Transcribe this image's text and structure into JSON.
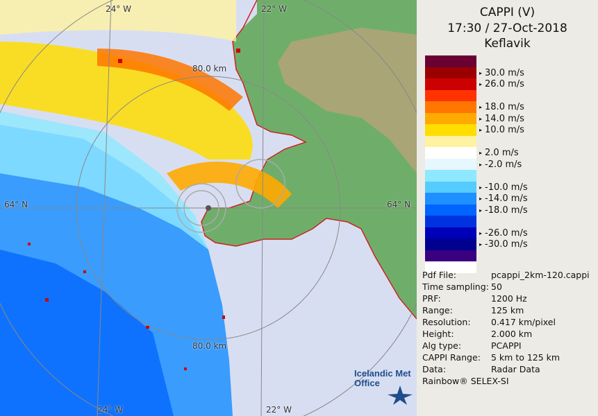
{
  "header": {
    "title": "CAPPI (V)",
    "datetime": "17:30 / 27-Oct-2018",
    "station": "Keflavik"
  },
  "map": {
    "grid_labels": {
      "lon_24w": "24° W",
      "lon_22w_top": "22° W",
      "lon_22w_bottom": "22° W",
      "lon_24w_bottom": "24° W",
      "lat_64n_left": "64° N",
      "lat_64n_right": "64° N",
      "range_80_top": "80.0 km",
      "range_80_bottom": "80.0 km"
    },
    "colors": {
      "sea": "#d8def2",
      "land": "#6fae6a",
      "highland": "#b8a27a",
      "coastline": "#cc2222",
      "grid": "#888888"
    }
  },
  "legend": {
    "colors": [
      "#6b0033",
      "#9a0000",
      "#cc0000",
      "#ff3300",
      "#ff7700",
      "#ffaa00",
      "#ffdd00",
      "#fff2a0",
      "#ffffff",
      "#e6f7ff",
      "#8ee8ff",
      "#55ccff",
      "#1e90ff",
      "#0064ff",
      "#0033e0",
      "#0000b8",
      "#000090",
      "#3a0080",
      "#ffffff"
    ],
    "labels": [
      {
        "text": "30.0 m/s",
        "idx": 1
      },
      {
        "text": "26.0 m/s",
        "idx": 2
      },
      {
        "text": "18.0 m/s",
        "idx": 4
      },
      {
        "text": "14.0 m/s",
        "idx": 5
      },
      {
        "text": "10.0 m/s",
        "idx": 6
      },
      {
        "text": "2.0 m/s",
        "idx": 8
      },
      {
        "text": "-2.0 m/s",
        "idx": 9
      },
      {
        "text": "-10.0 m/s",
        "idx": 11
      },
      {
        "text": "-14.0 m/s",
        "idx": 12
      },
      {
        "text": "-18.0 m/s",
        "idx": 13
      },
      {
        "text": "-26.0 m/s",
        "idx": 15
      },
      {
        "text": "-30.0 m/s",
        "idx": 16
      }
    ]
  },
  "info": [
    {
      "key": "Pdf File:",
      "value": "pcappi_2km-120.cappi"
    },
    {
      "key": "Time sampling:",
      "value": "50"
    },
    {
      "key": "PRF:",
      "value": "1200 Hz"
    },
    {
      "key": "Range:",
      "value": "125 km"
    },
    {
      "key": "Resolution:",
      "value": "0.417 km/pixel"
    },
    {
      "key": "Height:",
      "value": "2.000 km"
    },
    {
      "key": "Alg type:",
      "value": "PCAPPI"
    },
    {
      "key": "CAPPI Range:",
      "value": "5 km to 125 km"
    },
    {
      "key": "Data:",
      "value": "Radar Data"
    }
  ],
  "footer": {
    "software": "Rainbow® SELEX-SI",
    "logo_line1": "Icelandic Met",
    "logo_line2": "Office"
  }
}
